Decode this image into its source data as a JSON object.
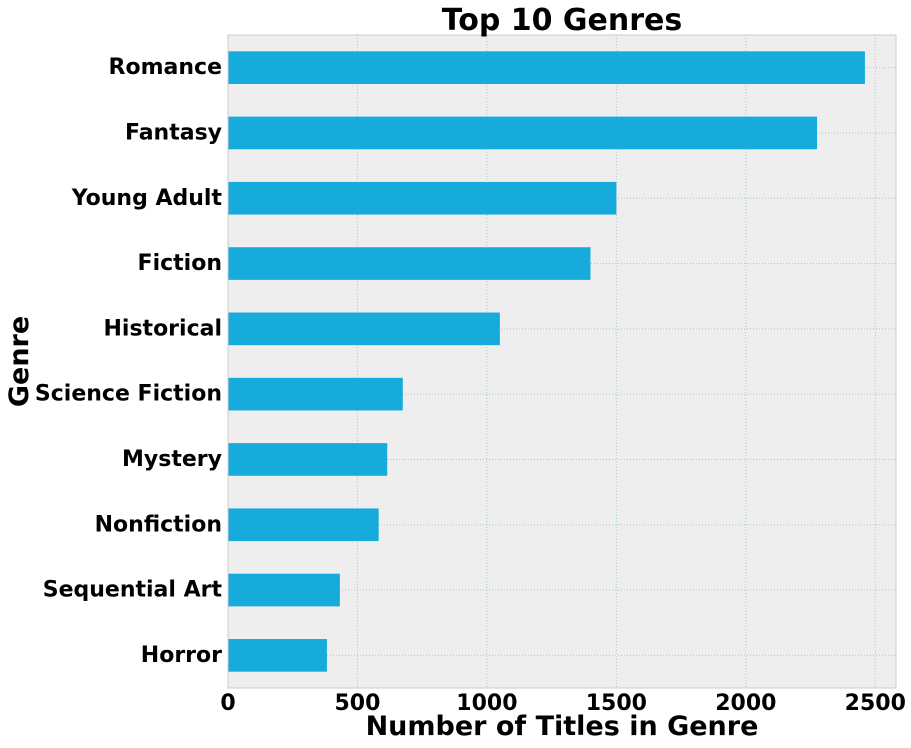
{
  "chart_data": {
    "type": "bar",
    "orientation": "horizontal",
    "title": "Top 10 Genres",
    "xlabel": "Number of Titles in Genre",
    "ylabel": "Genre",
    "categories": [
      "Romance",
      "Fantasy",
      "Young Adult",
      "Fiction",
      "Historical",
      "Science Fiction",
      "Mystery",
      "Nonfiction",
      "Sequential Art",
      "Horror"
    ],
    "values": [
      2460,
      2275,
      1500,
      1400,
      1050,
      675,
      615,
      582,
      432,
      382
    ],
    "xlim": [
      0,
      2580
    ],
    "xticks": [
      0,
      500,
      1000,
      1500,
      2000,
      2500
    ],
    "grid": true,
    "colors": {
      "bar": "#17abdb",
      "plot_background": "#eeeeee",
      "grid": "#9fcfc2",
      "frame": "#cccccc"
    }
  }
}
